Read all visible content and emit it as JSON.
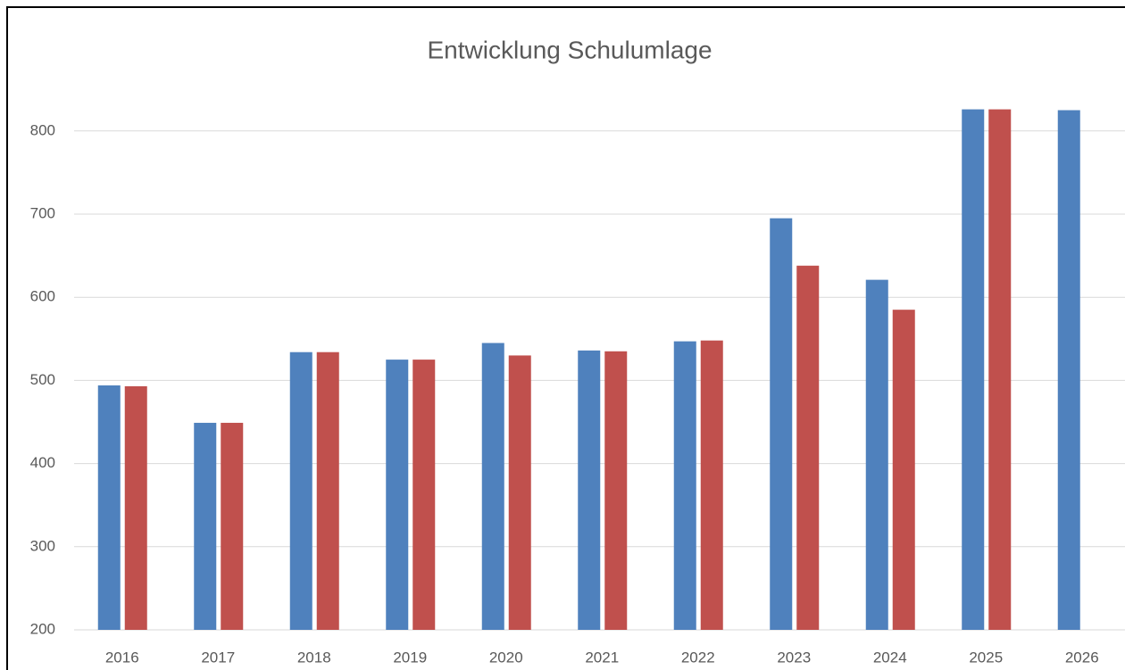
{
  "chart_data": {
    "type": "bar",
    "title": "Entwicklung Schulumlage",
    "categories": [
      "2016",
      "2017",
      "2018",
      "2019",
      "2020",
      "2021",
      "2022",
      "2023",
      "2024",
      "2025",
      "2026"
    ],
    "series": [
      {
        "color": "#4f81bd",
        "values": [
          494,
          449,
          534,
          525,
          545,
          536,
          547,
          695,
          621,
          826,
          825
        ]
      },
      {
        "color": "#c0504d",
        "values": [
          493,
          449,
          534,
          525,
          530,
          535,
          548,
          638,
          585,
          826,
          null
        ]
      }
    ],
    "ylim": [
      200,
      850
    ],
    "yticks": [
      200,
      300,
      400,
      500,
      600,
      700,
      800
    ],
    "grid": true
  }
}
